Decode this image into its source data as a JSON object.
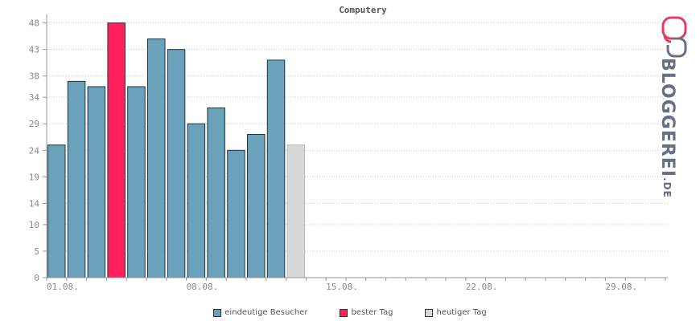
{
  "chart_data": {
    "type": "bar",
    "title": "Computery",
    "ylim": [
      0,
      49
    ],
    "yticks": [
      0,
      5,
      10,
      14,
      19,
      24,
      29,
      34,
      38,
      43,
      48
    ],
    "x_tick_labels": [
      {
        "label": "01.08.",
        "index": 0.8
      },
      {
        "label": "08.08.",
        "index": 7.8
      },
      {
        "label": "15.08.",
        "index": 14.8
      },
      {
        "label": "22.08.",
        "index": 21.8
      },
      {
        "label": "29.08.",
        "index": 28.8
      }
    ],
    "num_slots": 31,
    "grid": true,
    "values": [
      25,
      37,
      36,
      48,
      36,
      45,
      43,
      29,
      32,
      24,
      27,
      41,
      25
    ],
    "bar_types": [
      "normal",
      "normal",
      "normal",
      "best",
      "normal",
      "normal",
      "normal",
      "normal",
      "normal",
      "normal",
      "normal",
      "normal",
      "today"
    ],
    "colors": {
      "normal": "#6aa2bb",
      "best": "#ff1f5d",
      "today": "#d8d8d8"
    },
    "legend": [
      {
        "label": "eindeutige Besucher",
        "color": "#6aa2bb"
      },
      {
        "label": "bester Tag",
        "color": "#ff1f5d"
      },
      {
        "label": "heutiger Tag",
        "color": "#d8d8d8"
      }
    ],
    "legend_position": "bottom"
  },
  "logo": {
    "text": "BLOGGEREI",
    "suffix": ".DE"
  }
}
